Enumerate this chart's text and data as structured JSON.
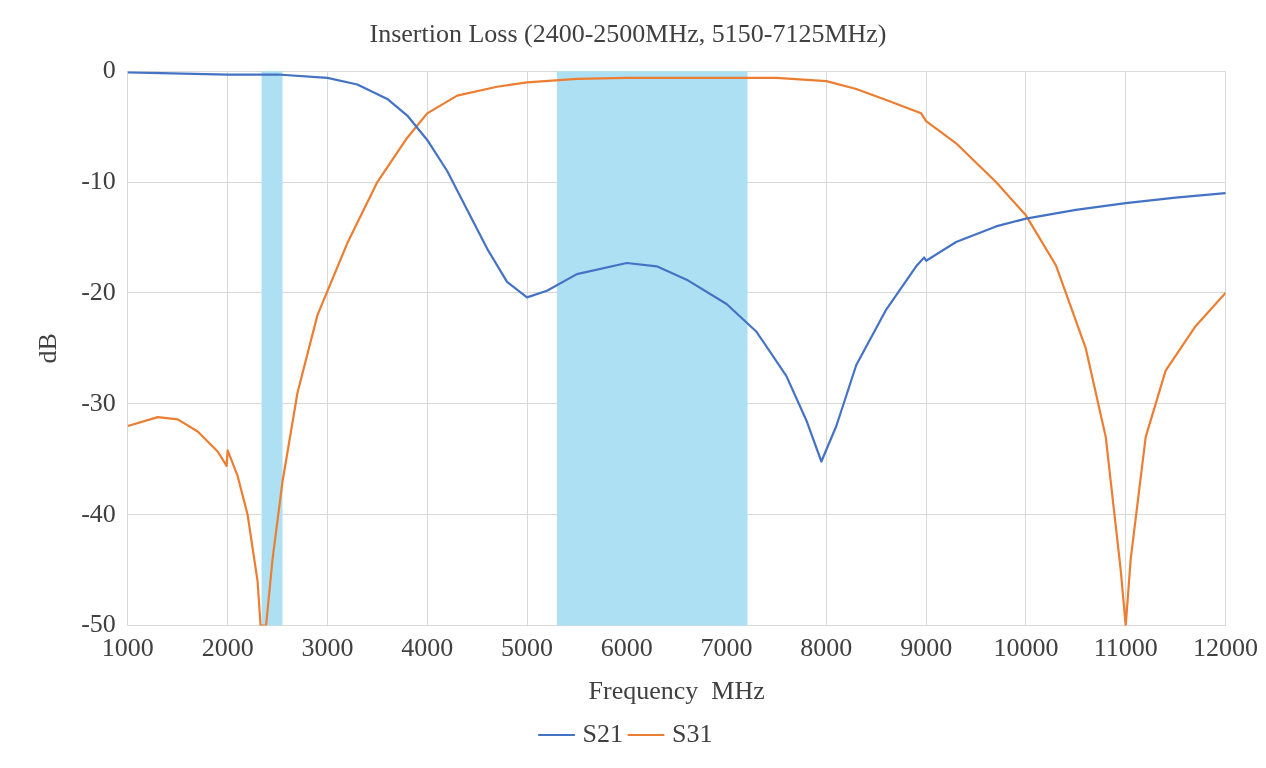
{
  "chart_data": {
    "type": "line",
    "title": "Insertion Loss (2400-2500MHz, 5150-7125MHz)",
    "xlabel": "Frequency  MHz",
    "ylabel": "dB",
    "xlim": [
      1000,
      12000
    ],
    "xticks": [
      1000,
      2000,
      3000,
      4000,
      5000,
      6000,
      7000,
      8000,
      9000,
      10000,
      11000,
      12000
    ],
    "ylim": [
      -50,
      0
    ],
    "yticks": [
      -50,
      -40,
      -30,
      -20,
      -10,
      0
    ],
    "grid": true,
    "legend": "bottom",
    "marker": "none",
    "line_style": "solid",
    "bands": [
      {
        "axis": "x",
        "from": 2340,
        "to": 2550,
        "color": "#ade0f3"
      },
      {
        "axis": "x",
        "from": 5300,
        "to": 7210,
        "color": "#ade0f3"
      }
    ],
    "series": [
      {
        "name": "S21",
        "color": "#4472c4",
        "x": [
          1000,
          2000,
          2500,
          3000,
          3300,
          3600,
          3800,
          4000,
          4200,
          4400,
          4600,
          4800,
          5000,
          5200,
          5500,
          6000,
          6300,
          6600,
          7000,
          7300,
          7600,
          7800,
          7950,
          8100,
          8300,
          8600,
          8900,
          8980,
          9000,
          9300,
          9700,
          10000,
          10500,
          11000,
          11500,
          12000
        ],
        "values": [
          -0.1,
          -0.3,
          -0.3,
          -0.6,
          -1.2,
          -2.5,
          -4,
          -6.2,
          -9,
          -12.5,
          -16,
          -19,
          -20.4,
          -19.8,
          -18.3,
          -17.3,
          -17.6,
          -18.8,
          -21,
          -23.5,
          -27.5,
          -31.5,
          -35.2,
          -32,
          -26.5,
          -21.5,
          -17.6,
          -16.8,
          -17.1,
          -15.4,
          -14,
          -13.3,
          -12.5,
          -11.9,
          -11.4,
          -11
        ]
      },
      {
        "name": "S31",
        "color": "#ed7d31",
        "x": [
          1000,
          1300,
          1500,
          1700,
          1900,
          1990,
          2000,
          2100,
          2200,
          2300,
          2330,
          2385,
          2450,
          2550,
          2700,
          2900,
          3200,
          3500,
          3800,
          4000,
          4300,
          4700,
          5000,
          5500,
          6000,
          7000,
          7500,
          8000,
          8300,
          8600,
          8950,
          9000,
          9300,
          9700,
          10000,
          10300,
          10600,
          10800,
          10950,
          11000,
          11050,
          11200,
          11400,
          11700,
          12000
        ],
        "values": [
          -32,
          -31.2,
          -31.4,
          -32.5,
          -34.3,
          -35.6,
          -34.2,
          -36.5,
          -40,
          -46,
          -50,
          -50,
          -44,
          -37,
          -29,
          -22,
          -15.5,
          -10,
          -6,
          -3.8,
          -2.2,
          -1.4,
          -1,
          -0.7,
          -0.6,
          -0.6,
          -0.6,
          -0.9,
          -1.6,
          -2.6,
          -3.8,
          -4.5,
          -6.5,
          -10,
          -13,
          -17.5,
          -25,
          -33,
          -45,
          -50,
          -44,
          -33,
          -27,
          -23,
          -20
        ]
      }
    ]
  }
}
